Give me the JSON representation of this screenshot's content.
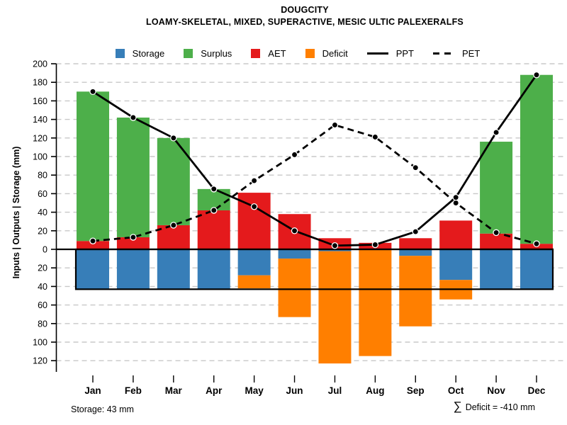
{
  "chart_data": {
    "type": "bar",
    "title": "DOUGCITY",
    "subtitle": "LOAMY-SKELETAL, MIXED, SUPERACTIVE, MESIC ULTIC PALEXERALFS",
    "ylabel": "Inputs | Outputs | Storage   (mm)",
    "units": "mm",
    "categories": [
      "Jan",
      "Feb",
      "Mar",
      "Apr",
      "May",
      "Jun",
      "Jul",
      "Aug",
      "Sep",
      "Oct",
      "Nov",
      "Dec"
    ],
    "series": [
      {
        "name": "Storage",
        "role": "bar-below-zero",
        "color": "#377EB8",
        "values": [
          43,
          43,
          43,
          43,
          28,
          10,
          2,
          0,
          7,
          33,
          43,
          43
        ]
      },
      {
        "name": "Surplus",
        "role": "bar-stacked-on-aet",
        "color": "#4DAF4A",
        "values": [
          161,
          129,
          94,
          23,
          0,
          0,
          0,
          0,
          0,
          0,
          99,
          182
        ]
      },
      {
        "name": "AET",
        "role": "bar-above-zero",
        "color": "#E41A1C",
        "values": [
          9,
          13,
          26,
          42,
          61,
          38,
          12,
          7,
          12,
          31,
          17,
          6
        ]
      },
      {
        "name": "Deficit",
        "role": "bar-below-storage",
        "color": "#FF7F00",
        "values": [
          0,
          0,
          0,
          0,
          14,
          63,
          121,
          115,
          76,
          21,
          0,
          0
        ]
      },
      {
        "name": "PPT",
        "role": "line-solid",
        "color": "#000000",
        "values": [
          170,
          142,
          120,
          65,
          46,
          20,
          4,
          5,
          19,
          56,
          126,
          188
        ]
      },
      {
        "name": "PET",
        "role": "line-dashed",
        "color": "#000000",
        "values": [
          9,
          13,
          26,
          42,
          74,
          102,
          134,
          121,
          88,
          50,
          18,
          6
        ]
      }
    ],
    "legend": [
      {
        "label": "Storage",
        "type": "swatch",
        "color": "#377EB8"
      },
      {
        "label": "Surplus",
        "type": "swatch",
        "color": "#4DAF4A"
      },
      {
        "label": "AET",
        "type": "swatch",
        "color": "#E41A1C"
      },
      {
        "label": "Deficit",
        "type": "swatch",
        "color": "#FF7F00"
      },
      {
        "label": "PPT",
        "type": "line-solid",
        "color": "#000000"
      },
      {
        "label": "PET",
        "type": "line-dashed",
        "color": "#000000"
      }
    ],
    "ytick_values": [
      200,
      180,
      160,
      140,
      120,
      100,
      80,
      60,
      40,
      20,
      0,
      -20,
      -40,
      -60,
      -80,
      -100,
      -120
    ],
    "ylim": [
      -130,
      200
    ],
    "grid": "horizontal dashed every 20 mm",
    "gridline_color": "#c8c8c8",
    "axis_color": "#000000",
    "storage_capacity_mm": 43,
    "annotations": {
      "storage_note": "Storage: 43 mm",
      "sigma": "∑",
      "deficit_note": "Deficit = -410 mm"
    }
  }
}
